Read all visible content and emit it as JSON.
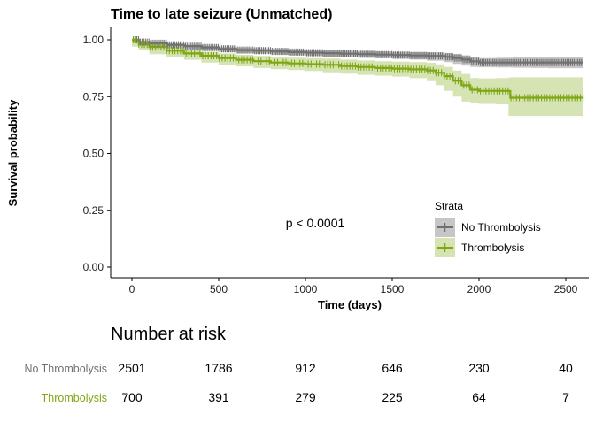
{
  "chart_data": {
    "type": "line",
    "title": "Time to late seizure (Unmatched)",
    "xlabel": "Time (days)",
    "ylabel": "Survival probability",
    "xlim": [
      0,
      2600
    ],
    "ylim": [
      0,
      1
    ],
    "x_ticks": [
      "0",
      "500",
      "1000",
      "1500",
      "2000",
      "2500"
    ],
    "y_ticks": [
      "0.00",
      "0.25",
      "0.50",
      "0.75",
      "1.00"
    ],
    "annotation": "p < 0.0001",
    "legend": {
      "title": "Strata",
      "position": "bottom-right",
      "entries": [
        "No Thrombolysis",
        "Thrombolysis"
      ]
    },
    "series": [
      {
        "name": "No Thrombolysis",
        "color": "#707070",
        "band_color": "#b3b3b3",
        "x": [
          0,
          40,
          100,
          200,
          300,
          400,
          500,
          600,
          700,
          800,
          900,
          1000,
          1100,
          1200,
          1300,
          1400,
          1500,
          1600,
          1700,
          1800,
          1850,
          1900,
          1950,
          2000,
          2100,
          2200,
          2300,
          2400,
          2500,
          2600
        ],
        "y": [
          1.0,
          0.99,
          0.985,
          0.978,
          0.972,
          0.966,
          0.96,
          0.955,
          0.952,
          0.949,
          0.946,
          0.943,
          0.941,
          0.939,
          0.937,
          0.935,
          0.933,
          0.931,
          0.929,
          0.925,
          0.92,
          0.913,
          0.905,
          0.9,
          0.9,
          0.9,
          0.9,
          0.9,
          0.9,
          0.9
        ],
        "lower": [
          1.0,
          0.986,
          0.98,
          0.972,
          0.965,
          0.958,
          0.952,
          0.946,
          0.942,
          0.939,
          0.935,
          0.932,
          0.929,
          0.926,
          0.924,
          0.921,
          0.919,
          0.916,
          0.913,
          0.908,
          0.902,
          0.894,
          0.886,
          0.88,
          0.879,
          0.878,
          0.877,
          0.876,
          0.875,
          0.875
        ],
        "upper": [
          1.0,
          0.994,
          0.99,
          0.984,
          0.979,
          0.974,
          0.968,
          0.964,
          0.962,
          0.959,
          0.957,
          0.954,
          0.953,
          0.952,
          0.95,
          0.949,
          0.947,
          0.946,
          0.945,
          0.942,
          0.938,
          0.932,
          0.924,
          0.92,
          0.921,
          0.922,
          0.923,
          0.924,
          0.925,
          0.925
        ]
      },
      {
        "name": "Thrombolysis",
        "color": "#7fa614",
        "band_color": "#c8d99a",
        "x": [
          0,
          40,
          100,
          200,
          300,
          400,
          500,
          600,
          700,
          800,
          900,
          1000,
          1100,
          1200,
          1300,
          1400,
          1500,
          1600,
          1700,
          1750,
          1800,
          1850,
          1900,
          1950,
          2000,
          2100,
          2170,
          2180,
          2300,
          2400,
          2500,
          2600
        ],
        "y": [
          1.0,
          0.98,
          0.968,
          0.952,
          0.94,
          0.93,
          0.92,
          0.912,
          0.906,
          0.9,
          0.896,
          0.893,
          0.89,
          0.885,
          0.88,
          0.876,
          0.873,
          0.87,
          0.865,
          0.855,
          0.84,
          0.82,
          0.8,
          0.78,
          0.775,
          0.775,
          0.775,
          0.745,
          0.745,
          0.745,
          0.745,
          0.745
        ],
        "lower": [
          1.0,
          0.97,
          0.955,
          0.937,
          0.923,
          0.912,
          0.9,
          0.89,
          0.883,
          0.876,
          0.871,
          0.867,
          0.863,
          0.857,
          0.851,
          0.846,
          0.842,
          0.838,
          0.831,
          0.818,
          0.8,
          0.775,
          0.75,
          0.728,
          0.72,
          0.718,
          0.716,
          0.665,
          0.665,
          0.665,
          0.665,
          0.665
        ],
        "upper": [
          1.0,
          0.99,
          0.981,
          0.967,
          0.957,
          0.948,
          0.94,
          0.934,
          0.929,
          0.924,
          0.921,
          0.919,
          0.917,
          0.913,
          0.909,
          0.906,
          0.904,
          0.902,
          0.899,
          0.892,
          0.88,
          0.865,
          0.85,
          0.832,
          0.83,
          0.832,
          0.834,
          0.835,
          0.835,
          0.835,
          0.835,
          0.835
        ]
      }
    ],
    "risk_table": {
      "title": "Number at risk",
      "times": [
        0,
        500,
        1000,
        1500,
        2000,
        2500
      ],
      "rows": [
        {
          "label": "No Thrombolysis",
          "color": "#707070",
          "values": [
            "2501",
            "1786",
            "912",
            "646",
            "230",
            "40"
          ]
        },
        {
          "label": "Thrombolysis",
          "color": "#7fa614",
          "values": [
            "700",
            "391",
            "279",
            "225",
            "64",
            "7"
          ]
        }
      ]
    }
  }
}
